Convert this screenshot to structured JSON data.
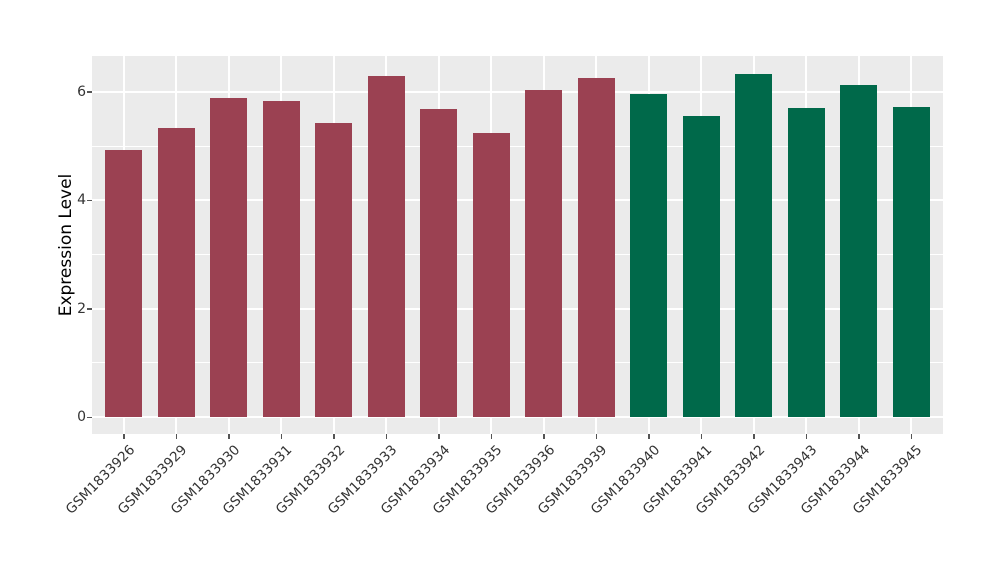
{
  "chart_data": {
    "type": "bar",
    "title": "",
    "xlabel": "",
    "ylabel": "Expression Level",
    "categories": [
      "GSM1833926",
      "GSM1833929",
      "GSM1833930",
      "GSM1833931",
      "GSM1833932",
      "GSM1833933",
      "GSM1833934",
      "GSM1833935",
      "GSM1833936",
      "GSM1833939",
      "GSM1833940",
      "GSM1833941",
      "GSM1833942",
      "GSM1833943",
      "GSM1833944",
      "GSM1833945"
    ],
    "values": [
      4.93,
      5.33,
      5.89,
      5.84,
      5.42,
      6.3,
      5.69,
      5.24,
      6.04,
      6.25,
      5.96,
      5.56,
      6.33,
      5.71,
      6.13,
      5.72
    ],
    "bar_colors": [
      "#9B4152",
      "#9B4152",
      "#9B4152",
      "#9B4152",
      "#9B4152",
      "#9B4152",
      "#9B4152",
      "#9B4152",
      "#9B4152",
      "#9B4152",
      "#00694A",
      "#00694A",
      "#00694A",
      "#00694A",
      "#00694A",
      "#00694A"
    ],
    "group_colors": {
      "left_group": "#9B4152",
      "right_group": "#00694A"
    },
    "ylim": [
      -0.32,
      6.65
    ],
    "yticks": [
      0,
      2,
      4,
      6
    ],
    "y_minor_ticks": [
      1,
      3,
      5
    ],
    "grid": true,
    "legend": "none",
    "panel_bg": "#EBEBEB",
    "grid_color": "#FFFFFF",
    "tick_mark_color": "#555555",
    "tick_label_color": "#333333"
  }
}
